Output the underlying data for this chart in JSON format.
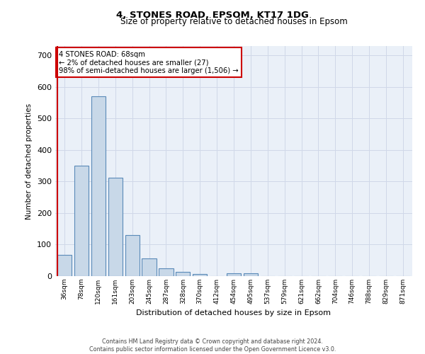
{
  "title1": "4, STONES ROAD, EPSOM, KT17 1DG",
  "title2": "Size of property relative to detached houses in Epsom",
  "xlabel": "Distribution of detached houses by size in Epsom",
  "ylabel": "Number of detached properties",
  "bar_labels": [
    "36sqm",
    "78sqm",
    "120sqm",
    "161sqm",
    "203sqm",
    "245sqm",
    "287sqm",
    "328sqm",
    "370sqm",
    "412sqm",
    "454sqm",
    "495sqm",
    "537sqm",
    "579sqm",
    "621sqm",
    "662sqm",
    "704sqm",
    "746sqm",
    "788sqm",
    "829sqm",
    "871sqm"
  ],
  "bar_values": [
    68,
    350,
    570,
    313,
    130,
    57,
    25,
    14,
    7,
    0,
    8,
    10,
    0,
    0,
    0,
    0,
    0,
    0,
    0,
    0,
    0
  ],
  "bar_color": "#c8d8e8",
  "bar_edge_color": "#5a8ab8",
  "highlight_color": "#cc0000",
  "annotation_text": "4 STONES ROAD: 68sqm\n← 2% of detached houses are smaller (27)\n98% of semi-detached houses are larger (1,506) →",
  "annotation_box_color": "#ffffff",
  "annotation_box_edge": "#cc0000",
  "ylim": [
    0,
    730
  ],
  "yticks": [
    0,
    100,
    200,
    300,
    400,
    500,
    600,
    700
  ],
  "grid_color": "#d0d8e8",
  "bg_color": "#eaf0f8",
  "footer1": "Contains HM Land Registry data © Crown copyright and database right 2024.",
  "footer2": "Contains public sector information licensed under the Open Government Licence v3.0."
}
